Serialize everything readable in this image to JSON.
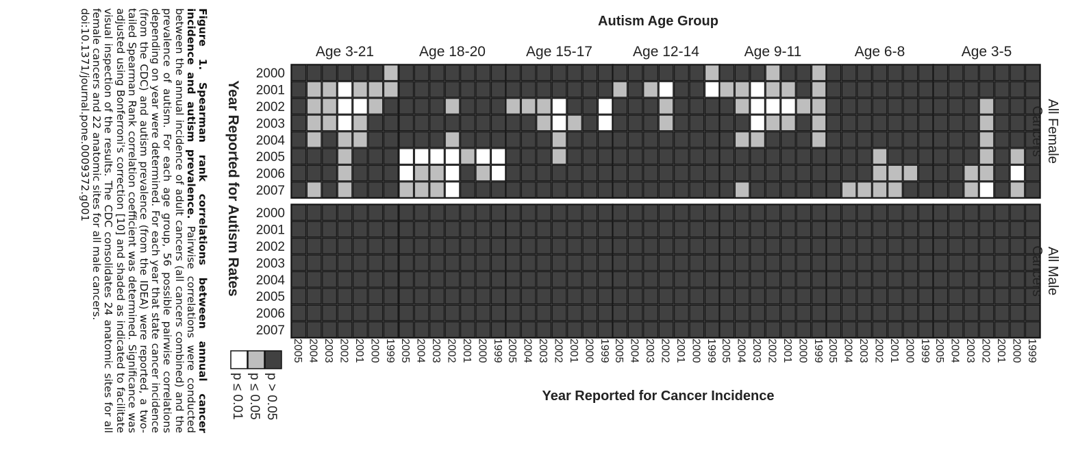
{
  "caption": {
    "bold": "Figure 1. Spearman rank correlations between annual cancer incidence and autism prevalence.",
    "text": " Pairwise correlations were conducted between the annual incidence of adult cancers (all cancers combined) and the prevalence of autism. For each age group, 56 possible pairwise correlations depending on year were determined. For each year that state cancer incidence (from the CDC) and autism prevalence (from the IDEA) were reported, a two-tailed Spearman Rank correlation coefficient was determined. Significance was adjusted using Bonferroni's correction [10] and shaded as indicated to facilitate visual inspection of the results. The CDC consolidates 24 anatomic sites for all female cancers and 22 anatomic sites for all male cancers.",
    "doi": "doi:10.1371/journal.pone.0009372.g001"
  },
  "chart_data": {
    "type": "heatmap",
    "title": "Autism Age Group",
    "xlabel": "Year Reported for Cancer Incidence",
    "ylabel": "Year Reported for Autism Rates",
    "columns": [
      "Age 3-21",
      "Age 18-20",
      "Age 15-17",
      "Age 12-14",
      "Age 9-11",
      "Age 6-8",
      "Age 3-5"
    ],
    "rows": [
      "All Female Cancers",
      "All Male Cancers"
    ],
    "y_years": [
      "2000",
      "2001",
      "2002",
      "2003",
      "2004",
      "2005",
      "2006",
      "2007"
    ],
    "x_years": [
      "2005",
      "2004",
      "2003",
      "2002",
      "2001",
      "2000",
      "1999"
    ],
    "levels": {
      "0": "p > 0.05",
      "1": "p ≤ 0.05",
      "2": "p ≤ 0.01"
    },
    "legend": {
      "entries": [
        {
          "level": 0,
          "label": "p > 0.05"
        },
        {
          "level": 1,
          "label": "p ≤ 0.05"
        },
        {
          "level": 2,
          "label": "p ≤ 0.01"
        }
      ],
      "placement": "bottom-left"
    },
    "colors": {
      "0": "#414141",
      "1": "#bebebe",
      "2": "#ffffff"
    },
    "female": [
      [
        [
          0,
          0,
          0,
          0,
          0,
          0,
          1
        ],
        [
          0,
          1,
          1,
          2,
          1,
          1,
          1
        ],
        [
          0,
          1,
          1,
          2,
          2,
          1,
          0
        ],
        [
          0,
          1,
          1,
          2,
          1,
          0,
          0
        ],
        [
          0,
          1,
          0,
          1,
          1,
          0,
          0
        ],
        [
          0,
          0,
          0,
          1,
          0,
          0,
          0
        ],
        [
          0,
          0,
          0,
          1,
          0,
          0,
          0
        ],
        [
          0,
          1,
          0,
          1,
          0,
          0,
          0
        ]
      ],
      [
        [
          0,
          0,
          0,
          0,
          0,
          0,
          0
        ],
        [
          0,
          0,
          0,
          0,
          0,
          0,
          0
        ],
        [
          0,
          0,
          0,
          1,
          0,
          0,
          0
        ],
        [
          0,
          0,
          0,
          0,
          0,
          0,
          0
        ],
        [
          0,
          0,
          0,
          1,
          0,
          0,
          0
        ],
        [
          2,
          2,
          2,
          2,
          1,
          2,
          2
        ],
        [
          2,
          1,
          1,
          2,
          0,
          1,
          2
        ],
        [
          1,
          1,
          1,
          2,
          0,
          0,
          0
        ]
      ],
      [
        [
          0,
          0,
          0,
          0,
          0,
          0,
          0
        ],
        [
          0,
          0,
          0,
          0,
          0,
          0,
          0
        ],
        [
          1,
          1,
          1,
          2,
          0,
          0,
          2
        ],
        [
          0,
          0,
          1,
          2,
          1,
          0,
          2
        ],
        [
          0,
          0,
          0,
          1,
          0,
          0,
          0
        ],
        [
          0,
          0,
          0,
          1,
          0,
          0,
          0
        ],
        [
          0,
          0,
          0,
          0,
          0,
          0,
          0
        ],
        [
          0,
          0,
          0,
          0,
          0,
          0,
          0
        ]
      ],
      [
        [
          0,
          0,
          0,
          0,
          0,
          0,
          1
        ],
        [
          1,
          0,
          1,
          2,
          0,
          0,
          2
        ],
        [
          0,
          0,
          0,
          1,
          0,
          0,
          0
        ],
        [
          0,
          0,
          0,
          1,
          0,
          0,
          0
        ],
        [
          0,
          0,
          0,
          0,
          0,
          0,
          0
        ],
        [
          0,
          0,
          0,
          0,
          0,
          0,
          0
        ],
        [
          0,
          0,
          0,
          0,
          0,
          0,
          0
        ],
        [
          0,
          0,
          0,
          0,
          0,
          0,
          0
        ]
      ],
      [
        [
          0,
          0,
          0,
          1,
          0,
          0,
          1
        ],
        [
          1,
          1,
          2,
          1,
          1,
          0,
          1
        ],
        [
          0,
          1,
          2,
          2,
          2,
          1,
          1
        ],
        [
          0,
          0,
          2,
          1,
          1,
          0,
          1
        ],
        [
          0,
          1,
          1,
          0,
          0,
          0,
          1
        ],
        [
          0,
          0,
          0,
          0,
          0,
          0,
          0
        ],
        [
          0,
          0,
          0,
          0,
          0,
          0,
          0
        ],
        [
          0,
          1,
          0,
          0,
          0,
          0,
          0
        ]
      ],
      [
        [
          0,
          0,
          0,
          0,
          0,
          0,
          0
        ],
        [
          0,
          0,
          0,
          0,
          0,
          0,
          0
        ],
        [
          0,
          0,
          0,
          0,
          0,
          0,
          0
        ],
        [
          0,
          0,
          0,
          0,
          0,
          0,
          0
        ],
        [
          0,
          0,
          0,
          0,
          0,
          0,
          0
        ],
        [
          0,
          0,
          0,
          1,
          0,
          0,
          0
        ],
        [
          0,
          0,
          0,
          1,
          1,
          1,
          0
        ],
        [
          0,
          1,
          1,
          1,
          1,
          0,
          0
        ]
      ],
      [
        [
          0,
          0,
          0,
          0,
          0,
          0,
          0
        ],
        [
          0,
          0,
          0,
          0,
          0,
          0,
          0
        ],
        [
          0,
          0,
          0,
          1,
          0,
          0,
          0
        ],
        [
          0,
          0,
          0,
          1,
          0,
          0,
          0
        ],
        [
          0,
          0,
          0,
          1,
          0,
          0,
          0
        ],
        [
          0,
          0,
          0,
          1,
          0,
          1,
          0
        ],
        [
          0,
          0,
          1,
          1,
          0,
          2,
          0
        ],
        [
          0,
          0,
          1,
          2,
          0,
          1,
          0
        ]
      ]
    ],
    "male_note": "all cells p > 0.05"
  }
}
